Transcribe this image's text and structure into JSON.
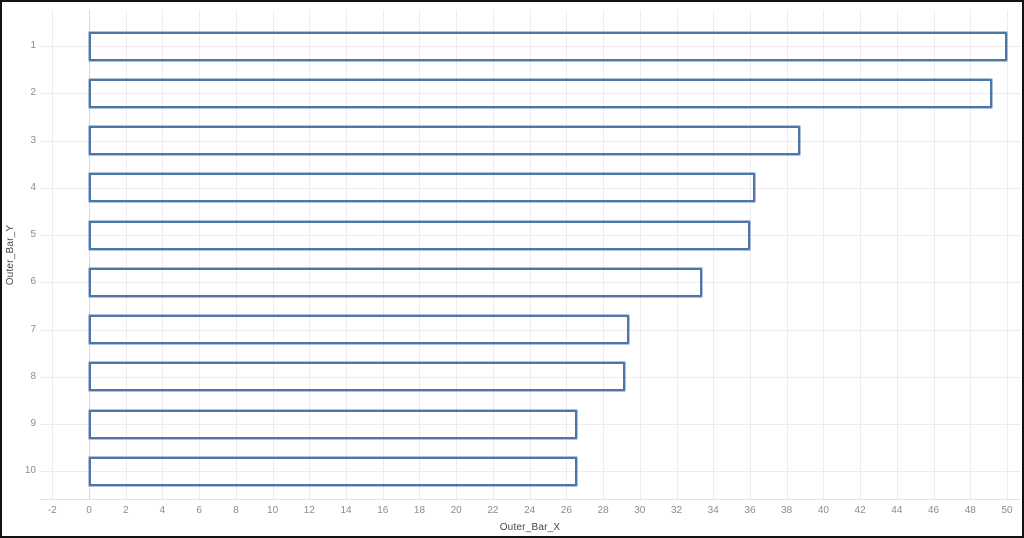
{
  "window": {
    "background": "#ffffff",
    "border_color": "#121212"
  },
  "chart_data": {
    "type": "bar",
    "orientation": "horizontal",
    "bar_style": "hollow-outline",
    "title": "",
    "xlabel": "Outer_Bar_X",
    "ylabel": "Outer_Bar_Y",
    "categories": [
      "1",
      "2",
      "3",
      "4",
      "5",
      "6",
      "7",
      "8",
      "9",
      "10"
    ],
    "values": [
      50,
      49.2,
      38.7,
      36.3,
      36.0,
      33.4,
      29.4,
      29.2,
      26.6,
      26.6
    ],
    "x_ticks": [
      -2,
      0,
      2,
      4,
      6,
      8,
      10,
      12,
      14,
      16,
      18,
      20,
      22,
      24,
      26,
      28,
      30,
      32,
      34,
      36,
      38,
      40,
      42,
      44,
      46,
      48,
      50
    ],
    "xlim": [
      -2.7,
      50.7
    ],
    "ylim": [
      0.25,
      10.6
    ],
    "y_axis_reversed": true,
    "grid": true,
    "legend": "none",
    "colors": {
      "bar_outline": "#4c76a8",
      "bar_outline_halo": "#9db3d1",
      "bar_fill": "transparent",
      "gridline": "#ededed",
      "zero_line": "#c3c3c3",
      "tick_label": "#8c8c8c",
      "axis_title": "#454545"
    }
  }
}
